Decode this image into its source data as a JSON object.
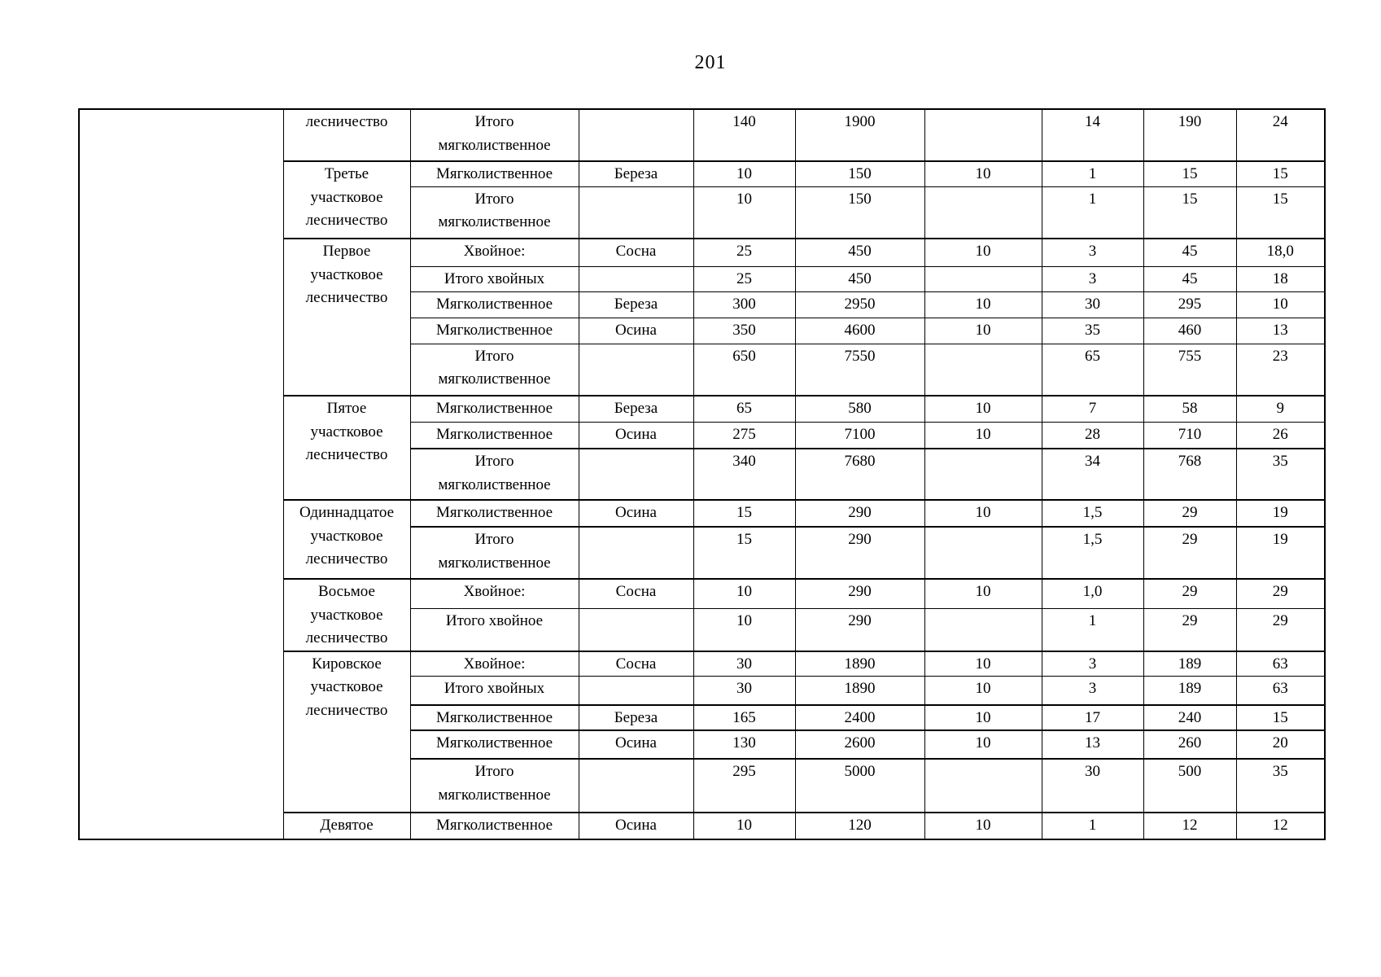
{
  "page": {
    "number": "201"
  },
  "table": {
    "sections": [
      {
        "district": "лесничество",
        "rows": [
          {
            "type": "Итого\nмягколиственное",
            "species": "",
            "values": [
              "140",
              "1900",
              "",
              "14",
              "190",
              "24"
            ]
          }
        ]
      },
      {
        "district": "Третье\nучастковое\nлесничество",
        "rows": [
          {
            "type": "Мягколиственное",
            "species": "Береза",
            "values": [
              "10",
              "150",
              "10",
              "1",
              "15",
              "15"
            ]
          },
          {
            "type": "Итого\nмягколиственное",
            "species": "",
            "values": [
              "10",
              "150",
              "",
              "1",
              "15",
              "15"
            ]
          }
        ]
      },
      {
        "district": "Первое\nучастковое\nлесничество",
        "rows": [
          {
            "type": "Хвойное:",
            "species": "Сосна",
            "values": [
              "25",
              "450",
              "10",
              "3",
              "45",
              "18,0"
            ]
          },
          {
            "type": "Итого хвойных",
            "species": "",
            "values": [
              "25",
              "450",
              "",
              "3",
              "45",
              "18"
            ]
          },
          {
            "type": "Мягколиственное",
            "species": "Береза",
            "values": [
              "300",
              "2950",
              "10",
              "30",
              "295",
              "10"
            ]
          },
          {
            "type": "Мягколиственное",
            "species": "Осина",
            "values": [
              "350",
              "4600",
              "10",
              "35",
              "460",
              "13"
            ]
          },
          {
            "type": "Итого\nмягколиственное",
            "species": "",
            "values": [
              "650",
              "7550",
              "",
              "65",
              "755",
              "23"
            ]
          }
        ]
      },
      {
        "district": "Пятое\nучастковое\nлесничество",
        "rows": [
          {
            "type": "Мягколиственное",
            "species": "Береза",
            "values": [
              "65",
              "580",
              "10",
              "7",
              "58",
              "9"
            ]
          },
          {
            "type": "Мягколиственное",
            "species": "Осина",
            "values": [
              "275",
              "7100",
              "10",
              "28",
              "710",
              "26"
            ]
          },
          {
            "type": "Итого\nмягколиственное",
            "species": "",
            "values": [
              "340",
              "7680",
              "",
              "34",
              "768",
              "35"
            ]
          }
        ]
      },
      {
        "district": "Одиннадцатое\nучастковое\nлесничество",
        "rows": [
          {
            "type": "Мягколиственное",
            "species": "Осина",
            "values": [
              "15",
              "290",
              "10",
              "1,5",
              "29",
              "19"
            ]
          },
          {
            "type": "Итого\nмягколиственное",
            "species": "",
            "values": [
              "15",
              "290",
              "",
              "1,5",
              "29",
              "19"
            ]
          }
        ]
      },
      {
        "district": "Восьмое\nучастковое\nлесничество",
        "rows": [
          {
            "type": "Хвойное:",
            "species": "Сосна",
            "values": [
              "10",
              "290",
              "10",
              "1,0",
              "29",
              "29"
            ]
          },
          {
            "type": "Итого хвойное",
            "species": "",
            "values": [
              "10",
              "290",
              "",
              "1",
              "29",
              "29"
            ]
          }
        ]
      },
      {
        "district": "Кировское\nучастковое\nлесничество",
        "rows": [
          {
            "type": "Хвойное:",
            "species": "Сосна",
            "values": [
              "30",
              "1890",
              "10",
              "3",
              "189",
              "63"
            ]
          },
          {
            "type": "Итого хвойных",
            "species": "",
            "values": [
              "30",
              "1890",
              "10",
              "3",
              "189",
              "63"
            ]
          },
          {
            "type": "Мягколиственное",
            "species": "Береза",
            "values": [
              "165",
              "2400",
              "10",
              "17",
              "240",
              "15"
            ]
          },
          {
            "type": "Мягколиственное",
            "species": "Осина",
            "values": [
              "130",
              "2600",
              "10",
              "13",
              "260",
              "20"
            ]
          },
          {
            "type": "Итого\nмягколиственное",
            "species": "",
            "values": [
              "295",
              "5000",
              "",
              "30",
              "500",
              "35"
            ]
          }
        ]
      },
      {
        "district": "Девятое",
        "rows": [
          {
            "type": "Мягколиственное",
            "species": "Осина",
            "values": [
              "10",
              "120",
              "10",
              "1",
              "12",
              "12"
            ]
          }
        ]
      }
    ]
  }
}
